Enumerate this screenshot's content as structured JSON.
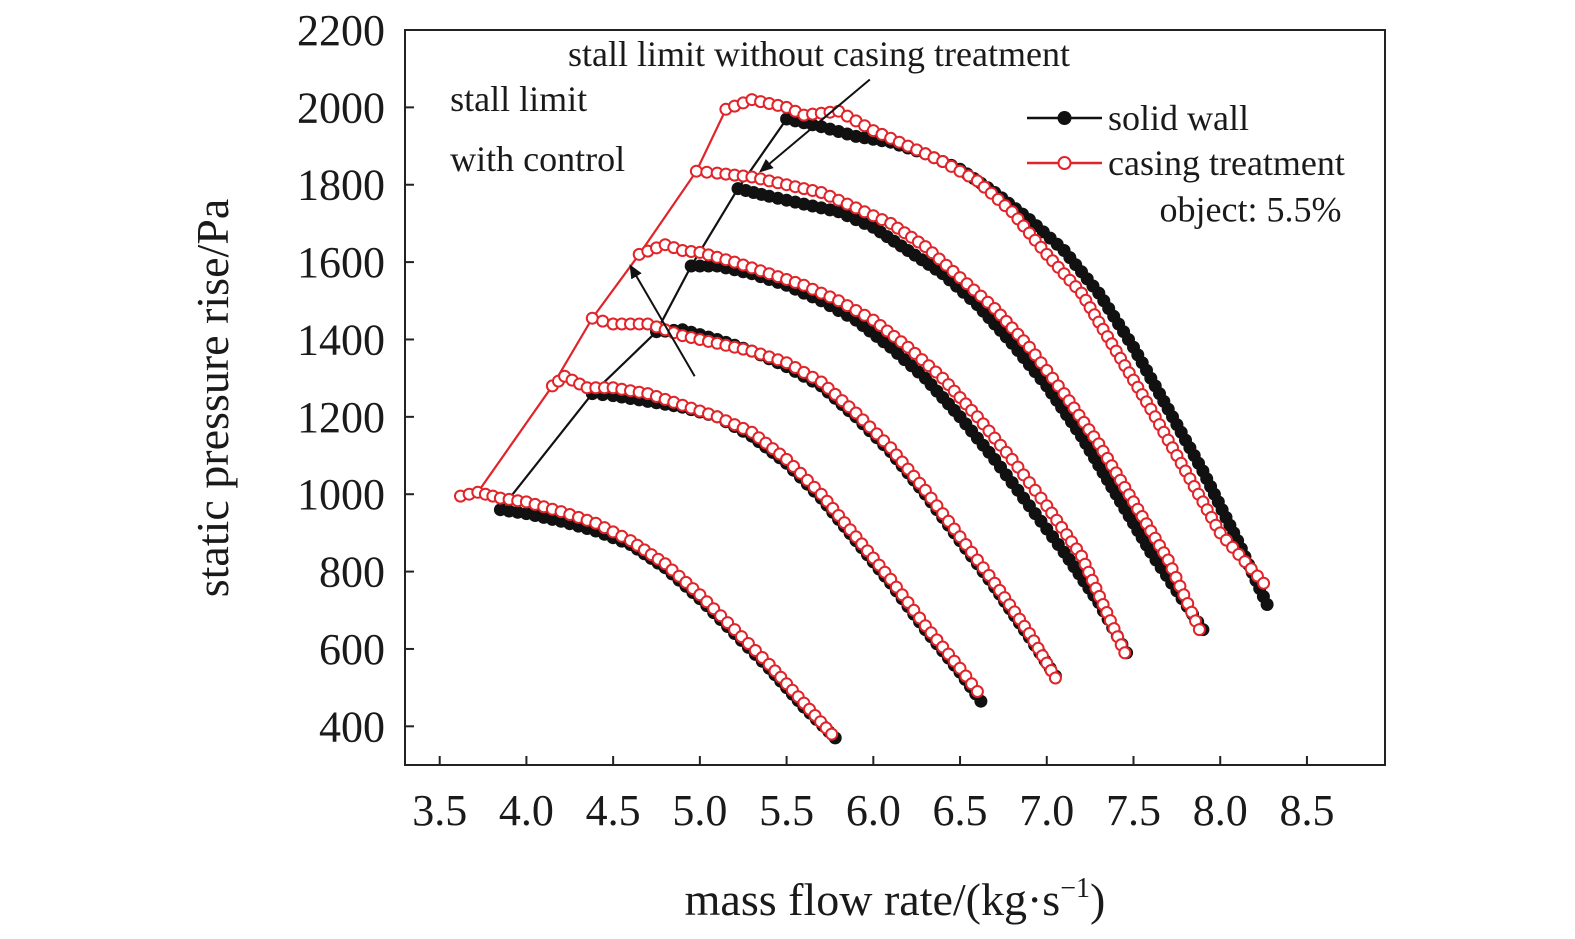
{
  "chart_data": {
    "type": "line",
    "xlabel": "mass flow rate/(kg·s",
    "xlabel_sup": "−1",
    "xlabel_close": ")",
    "ylabel": "static pressure rise/Pa",
    "xlim": [
      3.3,
      8.95
    ],
    "ylim": [
      300,
      2200
    ],
    "x_ticks": [
      3.5,
      4.0,
      4.5,
      5.0,
      5.5,
      6.0,
      6.5,
      7.0,
      7.5,
      8.0,
      8.5
    ],
    "x_tick_labels": [
      "3.5",
      "4.0",
      "4.5",
      "5.0",
      "5.5",
      "6.0",
      "6.5",
      "7.0",
      "7.5",
      "8.0",
      "8.5"
    ],
    "y_ticks": [
      400,
      600,
      800,
      1000,
      1200,
      1400,
      1600,
      1800,
      2000,
      2200
    ],
    "y_tick_labels": [
      "400",
      "600",
      "800",
      "1000",
      "1200",
      "1400",
      "1600",
      "1800",
      "2000",
      "2200"
    ],
    "grid": false,
    "legend_position": "top-right",
    "colors": {
      "solid_wall": "#111111",
      "casing_treatment": "#e0242a"
    },
    "series": [
      {
        "name": "solid wall",
        "marker": "filled-circle",
        "curves": [
          {
            "x": [
              3.85,
              4.0,
              4.2,
              4.4,
              4.6,
              4.8,
              5.0,
              5.2,
              5.4,
              5.6,
              5.78
            ],
            "y": [
              960,
              950,
              930,
              905,
              870,
              810,
              730,
              640,
              550,
              450,
              370
            ]
          },
          {
            "x": [
              4.38,
              4.5,
              4.7,
              4.9,
              5.1,
              5.3,
              5.5,
              5.7,
              5.9,
              6.1,
              6.3,
              6.5,
              6.62
            ],
            "y": [
              1260,
              1255,
              1240,
              1225,
              1200,
              1150,
              1080,
              990,
              880,
              770,
              650,
              540,
              465
            ]
          },
          {
            "x": [
              4.75,
              4.9,
              5.1,
              5.3,
              5.5,
              5.7,
              5.9,
              6.1,
              6.3,
              6.5,
              6.7,
              6.9,
              7.05
            ],
            "y": [
              1420,
              1425,
              1400,
              1370,
              1330,
              1280,
              1200,
              1110,
              1000,
              880,
              760,
              630,
              530
            ]
          },
          {
            "x": [
              4.95,
              5.1,
              5.3,
              5.5,
              5.7,
              5.9,
              6.1,
              6.3,
              6.5,
              6.7,
              6.9,
              7.1,
              7.3,
              7.46
            ],
            "y": [
              1590,
              1590,
              1570,
              1540,
              1500,
              1450,
              1380,
              1300,
              1200,
              1090,
              970,
              850,
              720,
              590
            ]
          },
          {
            "x": [
              5.22,
              5.4,
              5.6,
              5.8,
              6.0,
              6.2,
              6.4,
              6.6,
              6.8,
              7.0,
              7.2,
              7.4,
              7.6,
              7.9
            ],
            "y": [
              1790,
              1770,
              1750,
              1730,
              1690,
              1630,
              1570,
              1490,
              1390,
              1280,
              1150,
              1000,
              850,
              650
            ]
          },
          {
            "x": [
              5.5,
              5.7,
              5.9,
              6.1,
              6.3,
              6.5,
              6.7,
              6.9,
              7.1,
              7.3,
              7.5,
              7.7,
              7.9,
              8.1,
              8.27
            ],
            "y": [
              1970,
              1950,
              1925,
              1910,
              1880,
              1840,
              1780,
              1710,
              1630,
              1520,
              1380,
              1220,
              1060,
              880,
              715
            ]
          }
        ]
      },
      {
        "name": "casing treatment",
        "marker": "open-circle",
        "curves": [
          {
            "x": [
              3.62,
              3.72,
              3.85,
              4.0,
              4.2,
              4.4,
              4.6,
              4.8,
              5.0,
              5.2,
              5.4,
              5.6,
              5.76
            ],
            "y": [
              995,
              1005,
              990,
              980,
              955,
              925,
              880,
              820,
              740,
              650,
              560,
              460,
              380
            ]
          },
          {
            "x": [
              4.15,
              4.22,
              4.35,
              4.5,
              4.7,
              4.9,
              5.1,
              5.3,
              5.5,
              5.7,
              5.9,
              6.1,
              6.3,
              6.5,
              6.6
            ],
            "y": [
              1280,
              1305,
              1275,
              1275,
              1260,
              1230,
              1200,
              1160,
              1090,
              1000,
              890,
              780,
              660,
              550,
              490
            ]
          },
          {
            "x": [
              4.38,
              4.5,
              4.7,
              4.9,
              5.1,
              5.3,
              5.5,
              5.7,
              5.9,
              6.1,
              6.3,
              6.5,
              6.7,
              6.9,
              7.05
            ],
            "y": [
              1455,
              1440,
              1440,
              1410,
              1390,
              1370,
              1340,
              1290,
              1210,
              1120,
              1010,
              890,
              770,
              640,
              525
            ]
          },
          {
            "x": [
              4.65,
              4.8,
              4.9,
              5.0,
              5.2,
              5.4,
              5.6,
              5.8,
              6.0,
              6.2,
              6.4,
              6.6,
              6.8,
              7.0,
              7.2,
              7.45
            ],
            "y": [
              1620,
              1645,
              1630,
              1625,
              1600,
              1570,
              1540,
              1500,
              1450,
              1380,
              1300,
              1200,
              1090,
              970,
              840,
              590
            ]
          },
          {
            "x": [
              4.98,
              5.1,
              5.3,
              5.5,
              5.7,
              5.9,
              6.1,
              6.3,
              6.5,
              6.7,
              6.9,
              7.1,
              7.3,
              7.5,
              7.7,
              7.88
            ],
            "y": [
              1835,
              1830,
              1820,
              1800,
              1780,
              1740,
              1700,
              1640,
              1560,
              1480,
              1380,
              1260,
              1130,
              980,
              830,
              650
            ]
          },
          {
            "x": [
              5.15,
              5.3,
              5.4,
              5.5,
              5.6,
              5.8,
              6.0,
              6.2,
              6.4,
              6.6,
              6.8,
              7.0,
              7.2,
              7.4,
              7.6,
              7.8,
              8.0,
              8.25
            ],
            "y": [
              1995,
              2020,
              2010,
              2000,
              1980,
              1990,
              1940,
              1900,
              1860,
              1810,
              1730,
              1620,
              1520,
              1370,
              1220,
              1060,
              900,
              770
            ]
          }
        ]
      }
    ],
    "stall_lines": [
      {
        "color": "#e0242a",
        "x": [
          3.62,
          3.72,
          4.15,
          4.38,
          4.65,
          4.98,
          5.15,
          5.3
        ],
        "y": [
          995,
          1005,
          1280,
          1455,
          1620,
          1835,
          1995,
          2020
        ]
      },
      {
        "color": "#111111",
        "x": [
          3.85,
          4.38,
          4.75,
          4.95,
          5.22,
          5.5
        ],
        "y": [
          960,
          1260,
          1420,
          1590,
          1790,
          1970
        ]
      }
    ],
    "annotations": [
      {
        "name": "stall-limit-with-control",
        "lines": [
          "stall limit",
          "with control"
        ],
        "x": 3.56,
        "y": [
          1990,
          1835
        ],
        "arrow_from": [
          4.97,
          1305
        ],
        "arrow_to": [
          4.6,
          1590
        ]
      },
      {
        "name": "stall-limit-without-casing-treatment",
        "lines": [
          "stall limit without casing treatment"
        ],
        "x": 4.24,
        "y": [
          2107
        ],
        "arrow_from": [
          5.98,
          2072
        ],
        "arrow_to": [
          5.35,
          1835
        ]
      },
      {
        "name": "object-label",
        "lines": [
          "object: 5.5%"
        ],
        "x": 7.65,
        "y": [
          1705
        ]
      }
    ],
    "legend": [
      {
        "label": "solid wall",
        "series": 0
      },
      {
        "label": "casing treatment",
        "series": 1
      }
    ]
  }
}
